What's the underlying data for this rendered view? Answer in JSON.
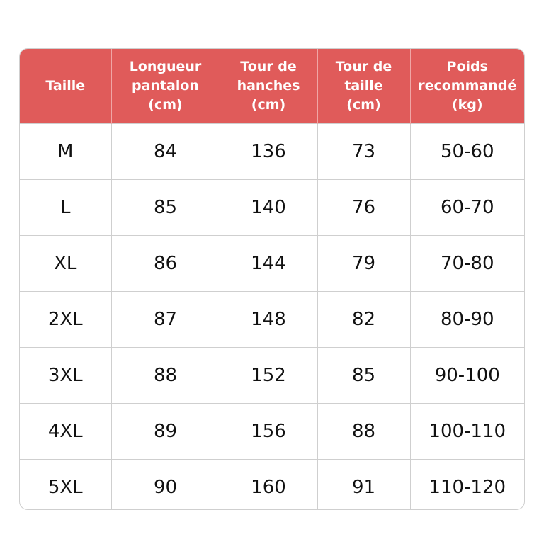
{
  "header_color": "#e05b5a",
  "headers": [
    "Taille",
    "Longueur pantalon (cm)",
    "Tour de hanches (cm)",
    "Tour de taille (cm)",
    "Poids recommandé (kg)"
  ],
  "header_lines": [
    [
      "Taille"
    ],
    [
      "Longueur",
      "pantalon",
      "(cm)"
    ],
    [
      "Tour de",
      "hanches",
      "(cm)"
    ],
    [
      "Tour de",
      "taille",
      "(cm)"
    ],
    [
      "Poids",
      "recommandé",
      "(kg)"
    ]
  ],
  "rows": [
    [
      "M",
      "84",
      "136",
      "73",
      "50-60"
    ],
    [
      "L",
      "85",
      "140",
      "76",
      "60-70"
    ],
    [
      "XL",
      "86",
      "144",
      "79",
      "70-80"
    ],
    [
      "2XL",
      "87",
      "148",
      "82",
      "80-90"
    ],
    [
      "3XL",
      "88",
      "152",
      "85",
      "90-100"
    ],
    [
      "4XL",
      "89",
      "156",
      "88",
      "100-110"
    ],
    [
      "5XL",
      "90",
      "160",
      "91",
      "110-120"
    ]
  ]
}
